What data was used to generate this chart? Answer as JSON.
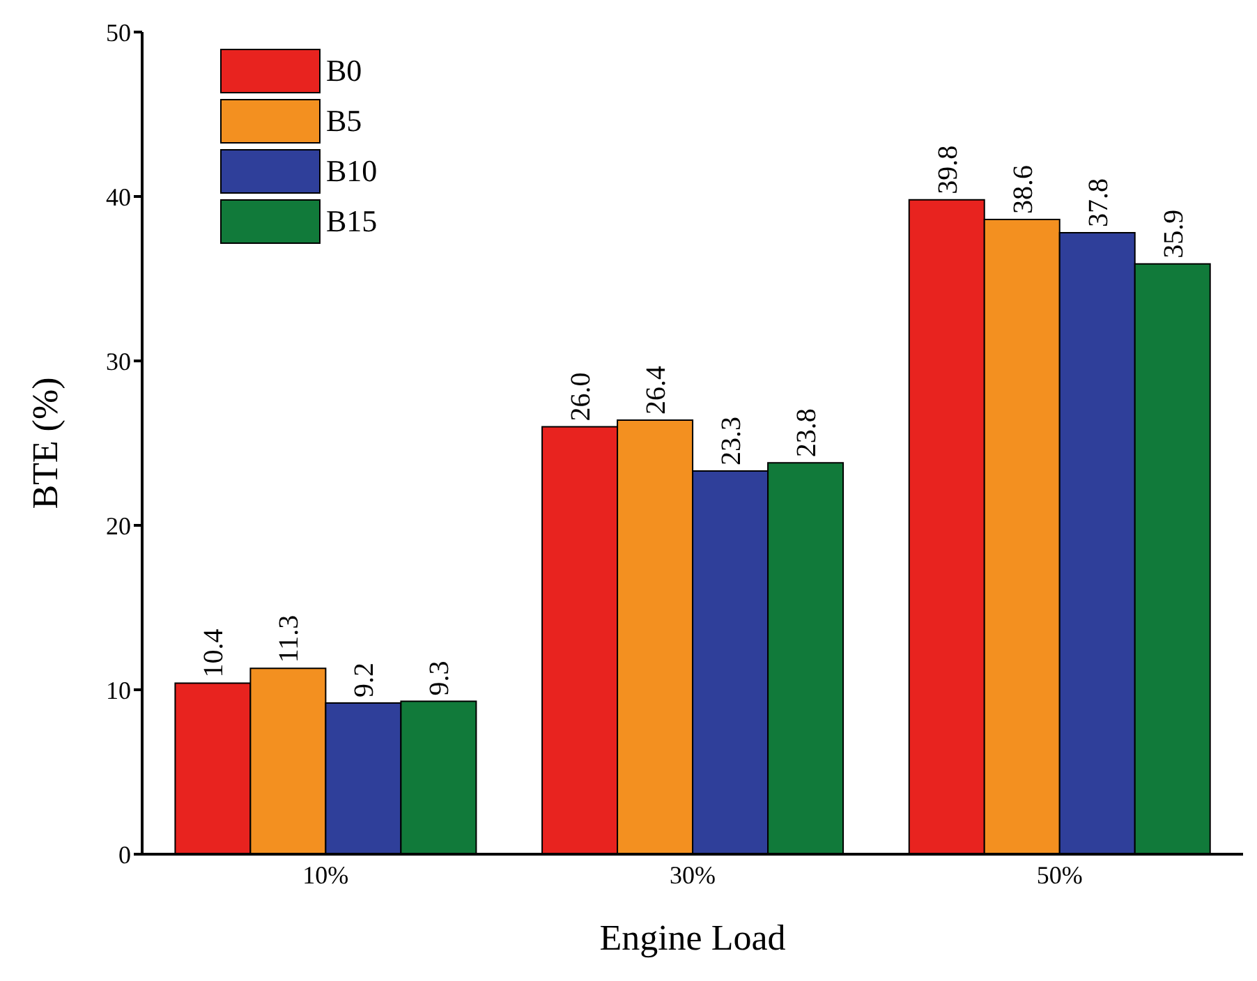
{
  "chart_data": {
    "type": "bar",
    "xlabel": "Engine Load",
    "ylabel": "BTE (%)",
    "categories": [
      "10%",
      "30%",
      "50%"
    ],
    "series": [
      {
        "name": "B0",
        "color": "#e8231f",
        "values": [
          10.4,
          26.0,
          39.8
        ]
      },
      {
        "name": "B5",
        "color": "#f39020",
        "values": [
          11.3,
          26.4,
          38.6
        ]
      },
      {
        "name": "B10",
        "color": "#2f3f9a",
        "values": [
          9.2,
          23.3,
          37.8
        ]
      },
      {
        "name": "B15",
        "color": "#117a3a",
        "values": [
          9.3,
          23.8,
          35.9
        ]
      }
    ],
    "value_labels": [
      [
        "10.4",
        "26.0",
        "39.8"
      ],
      [
        "11.3",
        "26.4",
        "38.6"
      ],
      [
        "9.2",
        "23.3",
        "37.8"
      ],
      [
        "9.3",
        "23.8",
        "35.9"
      ]
    ],
    "ylim": [
      0,
      50
    ],
    "yticks": [
      0,
      10,
      20,
      30,
      40,
      50
    ],
    "grid": false,
    "legend": "top left"
  }
}
